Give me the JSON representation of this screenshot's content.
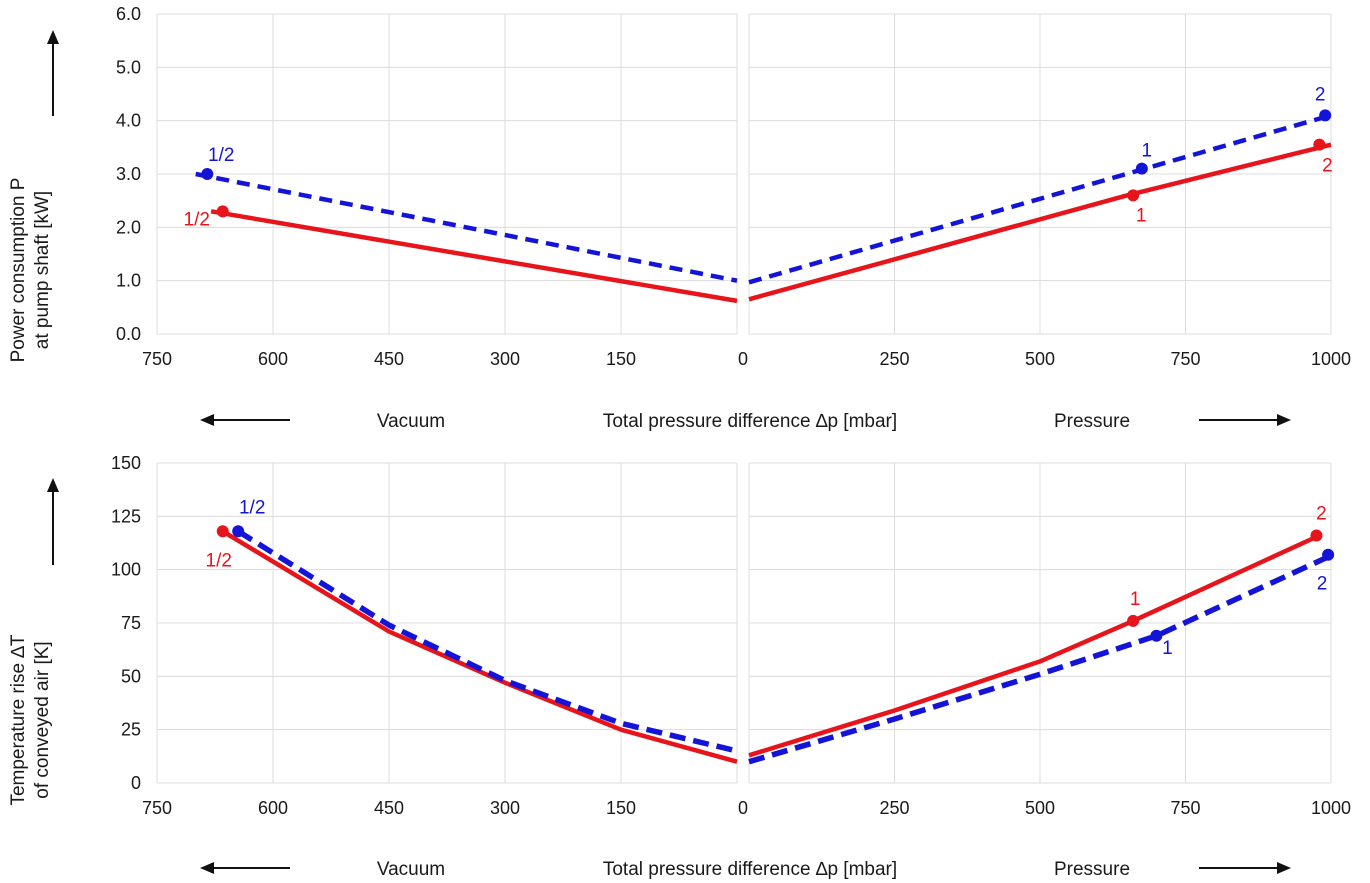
{
  "chart_data": [
    {
      "type": "line",
      "ylabel_lines": [
        "Power consumption P",
        "at pump shaft [kW]"
      ],
      "xlabel": "Total pressure difference ∆p [mbar]",
      "left_region_label": "Vacuum",
      "right_region_label": "Pressure",
      "ylim": [
        0,
        6
      ],
      "y_ticks": [
        "0.0",
        "1.0",
        "2.0",
        "3.0",
        "4.0",
        "5.0",
        "6.0"
      ],
      "vacuum_ticks": [
        "750",
        "600",
        "450",
        "300",
        "150",
        "0"
      ],
      "pressure_ticks": [
        "0",
        "250",
        "500",
        "750",
        "1000"
      ],
      "grid": true,
      "series": [
        {
          "color": "#e8141b",
          "style": "solid",
          "vacuum_line": [
            [
              680,
              2.3
            ],
            [
              0,
              0.62
            ]
          ],
          "pressure_line": [
            [
              0,
              0.65
            ],
            [
              650,
              2.6
            ],
            [
              1000,
              3.55
            ]
          ],
          "points": [
            {
              "side": "vacuum",
              "x": 665,
              "y": 2.3,
              "label": "1/2"
            },
            {
              "side": "pressure",
              "x": 660,
              "y": 2.6,
              "label": "1"
            },
            {
              "side": "pressure",
              "x": 980,
              "y": 3.55,
              "label": "2"
            }
          ]
        },
        {
          "color": "#1414d9",
          "style": "dashed",
          "vacuum_line": [
            [
              700,
              3.0
            ],
            [
              0,
              1.0
            ]
          ],
          "pressure_line": [
            [
              0,
              0.97
            ],
            [
              680,
              3.1
            ],
            [
              1000,
              4.1
            ]
          ],
          "points": [
            {
              "side": "vacuum",
              "x": 685,
              "y": 3.0,
              "label": "1/2"
            },
            {
              "side": "pressure",
              "x": 675,
              "y": 3.1,
              "label": "1"
            },
            {
              "side": "pressure",
              "x": 990,
              "y": 4.1,
              "label": "2"
            }
          ]
        }
      ]
    },
    {
      "type": "line",
      "ylabel_lines": [
        "Temperature rise ∆T",
        "of conveyed air [K]"
      ],
      "xlabel": "Total pressure difference ∆p [mbar]",
      "left_region_label": "Vacuum",
      "right_region_label": "Pressure",
      "ylim": [
        0,
        150
      ],
      "y_ticks": [
        "0",
        "25",
        "50",
        "75",
        "100",
        "125",
        "150"
      ],
      "vacuum_ticks": [
        "750",
        "600",
        "450",
        "300",
        "150",
        "0"
      ],
      "pressure_ticks": [
        "0",
        "250",
        "500",
        "750",
        "1000"
      ],
      "grid": true,
      "series": [
        {
          "color": "#e8141b",
          "style": "solid",
          "vacuum_line": [
            [
              665,
              118
            ],
            [
              450,
              71
            ],
            [
              300,
              47
            ],
            [
              150,
              25
            ],
            [
              0,
              10
            ]
          ],
          "pressure_line": [
            [
              0,
              13
            ],
            [
              250,
              34
            ],
            [
              500,
              57
            ],
            [
              660,
              76
            ],
            [
              980,
              116
            ]
          ],
          "points": [
            {
              "side": "vacuum",
              "x": 665,
              "y": 118,
              "label": "1/2"
            },
            {
              "side": "pressure",
              "x": 660,
              "y": 76,
              "label": "1"
            },
            {
              "side": "pressure",
              "x": 975,
              "y": 116,
              "label": "2"
            }
          ]
        },
        {
          "color": "#1414d9",
          "style": "dashed",
          "vacuum_line": [
            [
              645,
              118
            ],
            [
              450,
              74
            ],
            [
              300,
              48
            ],
            [
              150,
              28
            ],
            [
              0,
              15
            ]
          ],
          "pressure_line": [
            [
              0,
              10
            ],
            [
              250,
              30
            ],
            [
              500,
              51
            ],
            [
              700,
              69
            ],
            [
              995,
              106
            ]
          ],
          "points": [
            {
              "side": "vacuum",
              "x": 645,
              "y": 118,
              "label": "1/2"
            },
            {
              "side": "pressure",
              "x": 700,
              "y": 69,
              "label": "1"
            },
            {
              "side": "pressure",
              "x": 995,
              "y": 107,
              "label": "2"
            }
          ]
        }
      ]
    }
  ]
}
